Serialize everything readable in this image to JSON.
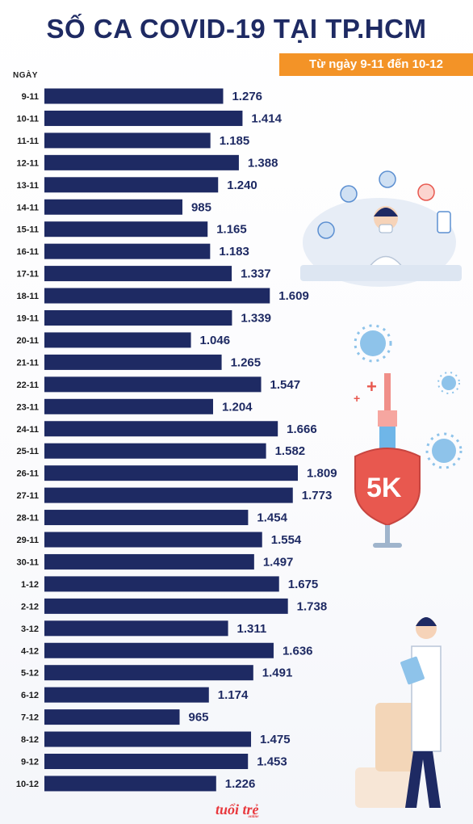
{
  "header": {
    "title": "SỐ CA COVID-19 TẠI TP.HCM",
    "subtitle": "Từ ngày 9-11 đến 10-12",
    "y_axis_label": "NGÀY"
  },
  "brand": {
    "logo_text": "tuổi trẻ",
    "logo_sub": "online"
  },
  "colors": {
    "bar": "#1e2a63",
    "title": "#1e2a63",
    "subtitle_bg": "#f39327"
  },
  "chart_data": {
    "type": "bar",
    "orientation": "horizontal",
    "title": "SỐ CA COVID-19 TẠI TP.HCM",
    "subtitle": "Từ ngày 9-11 đến 10-12",
    "ylabel": "NGÀY",
    "xlabel": "",
    "grid": false,
    "legend": "none",
    "categories": [
      "9-11",
      "10-11",
      "11-11",
      "12-11",
      "13-11",
      "14-11",
      "15-11",
      "16-11",
      "17-11",
      "18-11",
      "19-11",
      "20-11",
      "21-11",
      "22-11",
      "23-11",
      "24-11",
      "25-11",
      "26-11",
      "27-11",
      "28-11",
      "29-11",
      "30-11",
      "1-12",
      "2-12",
      "3-12",
      "4-12",
      "5-12",
      "6-12",
      "7-12",
      "8-12",
      "9-12",
      "10-12"
    ],
    "values": [
      1276,
      1414,
      1185,
      1388,
      1240,
      985,
      1165,
      1183,
      1337,
      1609,
      1339,
      1046,
      1265,
      1547,
      1204,
      1666,
      1582,
      1809,
      1773,
      1454,
      1554,
      1497,
      1675,
      1738,
      1311,
      1636,
      1491,
      1174,
      965,
      1475,
      1453,
      1226
    ],
    "value_labels": [
      "1.276",
      "1.414",
      "1.185",
      "1.388",
      "1.240",
      "985",
      "1.165",
      "1.183",
      "1.337",
      "1.609",
      "1.339",
      "1.046",
      "1.265",
      "1.547",
      "1.204",
      "1.666",
      "1.582",
      "1.809",
      "1.773",
      "1.454",
      "1.554",
      "1.497",
      "1.675",
      "1.738",
      "1.311",
      "1.636",
      "1.491",
      "1.174",
      "965",
      "1.475",
      "1.453",
      "1.226"
    ]
  }
}
